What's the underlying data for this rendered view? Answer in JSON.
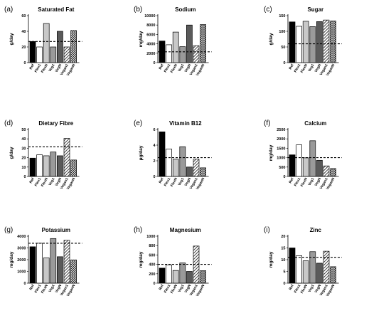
{
  "patterns": {
    "Ref": "solid-black",
    "Flex1": "white",
    "FlexN": "light-grey",
    "Veg1": "grey",
    "VegN": "dark-grey",
    "Vegan1": "diagonal-hatch",
    "VeganN": "crosshatch"
  },
  "chart_data": [
    {
      "type": "bar",
      "panel": "(a)",
      "title": "Saturated Fat",
      "ylabel": "g/day",
      "categories": [
        "Ref",
        "Flex1",
        "FlexN",
        "Veg1",
        "VegN",
        "Vegan1",
        "VeganN"
      ],
      "values": [
        27,
        20,
        50,
        20,
        40,
        20,
        41
      ],
      "reference_line": 27,
      "ylim": [
        0,
        60
      ],
      "yticks": [
        0,
        20,
        40,
        60
      ]
    },
    {
      "type": "bar",
      "panel": "(b)",
      "title": "Sodium",
      "ylabel": "mg/day",
      "categories": [
        "Ref",
        "Flex1",
        "FlexN",
        "Veg1",
        "VegN",
        "Vegan1",
        "VeganN"
      ],
      "values": [
        4600,
        3800,
        6500,
        3400,
        8000,
        3600,
        8100
      ],
      "reference_line": 2300,
      "ylim": [
        0,
        10000
      ],
      "yticks": [
        0,
        2000,
        4000,
        6000,
        8000,
        10000
      ]
    },
    {
      "type": "bar",
      "panel": "(c)",
      "title": "Sugar",
      "ylabel": "g/day",
      "categories": [
        "Ref",
        "Flex1",
        "FlexN",
        "Veg1",
        "VegN",
        "Vegan1",
        "VeganN"
      ],
      "values": [
        130,
        116,
        132,
        115,
        131,
        136,
        133
      ],
      "reference_line": 60,
      "ylim": [
        0,
        150
      ],
      "yticks": [
        0,
        50,
        100,
        150
      ]
    },
    {
      "type": "bar",
      "panel": "(d)",
      "title": "Dietary Fibre",
      "ylabel": "g/day",
      "categories": [
        "Ref",
        "Flex1",
        "FlexN",
        "Veg1",
        "VegN",
        "Vegan1",
        "VeganN"
      ],
      "values": [
        19.5,
        23,
        22,
        26,
        22,
        40.5,
        17.5
      ],
      "reference_line": 31.5,
      "ylim": [
        0,
        50
      ],
      "yticks": [
        0,
        10,
        20,
        30,
        40,
        50
      ]
    },
    {
      "type": "bar",
      "panel": "(e)",
      "title": "Vitamin B12",
      "ylabel": "µg/day",
      "categories": [
        "Ref",
        "Flex1",
        "FlexN",
        "Veg1",
        "VegN",
        "Vegan1",
        "VeganN"
      ],
      "values": [
        5.7,
        3.5,
        2.2,
        3.8,
        1.2,
        2.2,
        1.1
      ],
      "reference_line": 2.4,
      "ylim": [
        0,
        6
      ],
      "yticks": [
        0,
        2,
        4,
        6
      ]
    },
    {
      "type": "bar",
      "panel": "(f)",
      "title": "Calcium",
      "ylabel": "mg/day",
      "categories": [
        "Ref",
        "Flex1",
        "FlexN",
        "Veg1",
        "VegN",
        "Vegan1",
        "VeganN"
      ],
      "values": [
        1150,
        1680,
        990,
        1900,
        860,
        560,
        420
      ],
      "reference_line": 1000,
      "ylim": [
        0,
        2500
      ],
      "yticks": [
        0,
        500,
        1000,
        1500,
        2000,
        2500
      ]
    },
    {
      "type": "bar",
      "panel": "(g)",
      "title": "Potassium",
      "ylabel": "mg/day",
      "categories": [
        "Ref",
        "Flex1",
        "FlexN",
        "Veg1",
        "VegN",
        "Vegan1",
        "VeganN"
      ],
      "values": [
        3100,
        3400,
        2150,
        3800,
        2250,
        3650,
        1980
      ],
      "reference_line": 3400,
      "ylim": [
        0,
        4000
      ],
      "yticks": [
        0,
        1000,
        2000,
        3000,
        4000
      ]
    },
    {
      "type": "bar",
      "panel": "(h)",
      "title": "Magnesium",
      "ylabel": "mg/day",
      "categories": [
        "Ref",
        "Flex1",
        "FlexN",
        "Veg1",
        "VegN",
        "Vegan1",
        "VeganN"
      ],
      "values": [
        320,
        390,
        270,
        430,
        250,
        790,
        265
      ],
      "reference_line": 400,
      "ylim": [
        0,
        1000
      ],
      "yticks": [
        0,
        200,
        400,
        600,
        800,
        1000
      ]
    },
    {
      "type": "bar",
      "panel": "(i)",
      "title": "Zinc",
      "ylabel": "mg/day",
      "categories": [
        "Ref",
        "Flex1",
        "FlexN",
        "Veg1",
        "VegN",
        "Vegan1",
        "VeganN"
      ],
      "values": [
        15,
        11.7,
        9.5,
        13.4,
        8.5,
        13.6,
        7
      ],
      "reference_line": 11,
      "ylim": [
        0,
        20
      ],
      "yticks": [
        0,
        5,
        10,
        15,
        20
      ]
    }
  ]
}
